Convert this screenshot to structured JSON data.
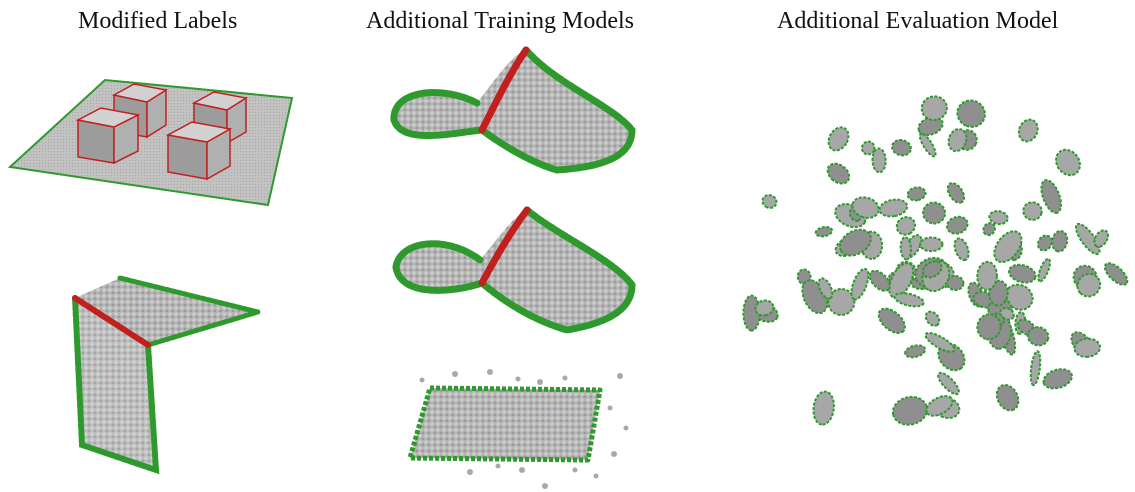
{
  "columns": [
    {
      "title": "Modified Labels"
    },
    {
      "title": "Additional Training Models"
    },
    {
      "title": "Additional Evaluation Model"
    }
  ],
  "colors": {
    "surface_gray": "#b8b8b8",
    "boundary_green": "#2e9a2e",
    "crease_red": "#c21f1f",
    "background": "#ffffff"
  },
  "figure": {
    "panels": [
      "plate-with-four-boxes",
      "folded-l-sheet",
      "curved-sheet-top",
      "curved-sheet-middle",
      "flat-sheet-with-scattered-particles",
      "exploded-cloud-of-curved-fragments"
    ]
  }
}
